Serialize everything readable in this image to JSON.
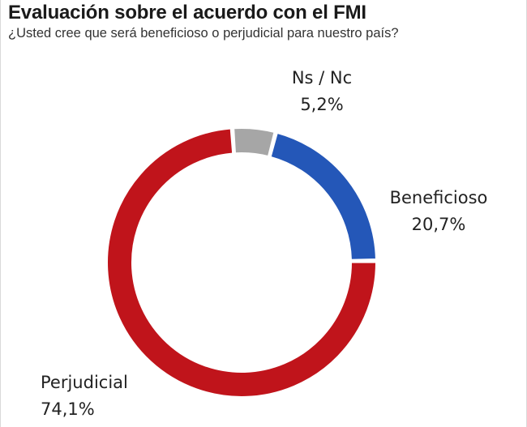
{
  "chart_data": {
    "type": "pie",
    "variant": "donut",
    "title": "Evaluación sobre el acuerdo con el FMI",
    "subtitle": "¿Usted cree que será beneficioso o perjudicial para nuestro país?",
    "slices": [
      {
        "label": "Ns / Nc",
        "value": 5.2,
        "value_text": "5,2%",
        "color": "#a6a6a6"
      },
      {
        "label": "Beneficioso",
        "value": 20.7,
        "value_text": "20,7%",
        "color": "#2457b8"
      },
      {
        "label": "Perjudicial",
        "value": 74.1,
        "value_text": "74,1%",
        "color": "#c0141b"
      }
    ]
  }
}
